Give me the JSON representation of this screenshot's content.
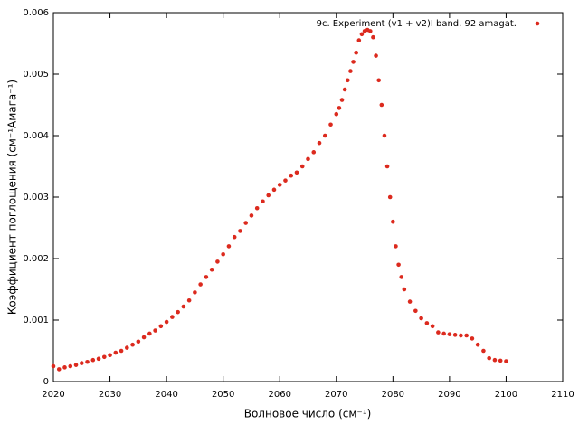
{
  "chart_data": {
    "type": "scatter",
    "xlabel": "Волновое число (см⁻¹)",
    "ylabel": "Коэффициент поглощения (см⁻¹Амага⁻¹)",
    "xlim": [
      2020,
      2110
    ],
    "xticks": [
      2020,
      2030,
      2040,
      2050,
      2060,
      2070,
      2080,
      2090,
      2100,
      2110
    ],
    "ylim": [
      0,
      0.006
    ],
    "yticks": [
      0,
      0.001,
      0.002,
      0.003,
      0.004,
      0.005,
      0.006
    ],
    "legend": "upper right",
    "series": [
      {
        "name": "9c. Experiment (v1 + v2)I band. 92 amagat.",
        "color": "#dc2a1e",
        "x": [
          2020,
          2021,
          2022,
          2023,
          2024,
          2025,
          2026,
          2027,
          2028,
          2029,
          2030,
          2031,
          2032,
          2033,
          2034,
          2035,
          2036,
          2037,
          2038,
          2039,
          2040,
          2041,
          2042,
          2043,
          2044,
          2045,
          2046,
          2047,
          2048,
          2049,
          2050,
          2051,
          2052,
          2053,
          2054,
          2055,
          2056,
          2057,
          2058,
          2059,
          2060,
          2061,
          2062,
          2063,
          2064,
          2065,
          2066,
          2067,
          2068,
          2069,
          2070,
          2070.5,
          2071,
          2071.5,
          2072,
          2072.5,
          2073,
          2073.5,
          2074,
          2074.5,
          2075,
          2075.5,
          2076,
          2076.5,
          2077,
          2077.5,
          2078,
          2078.5,
          2079,
          2079.5,
          2080,
          2080.5,
          2081,
          2081.5,
          2082,
          2083,
          2084,
          2085,
          2086,
          2087,
          2088,
          2089,
          2090,
          2091,
          2092,
          2093,
          2094,
          2095,
          2096,
          2097,
          2098,
          2099,
          2100
        ],
        "values": [
          0.00025,
          0.0002,
          0.00023,
          0.00025,
          0.00027,
          0.0003,
          0.00032,
          0.00035,
          0.00037,
          0.0004,
          0.00043,
          0.00047,
          0.0005,
          0.00055,
          0.0006,
          0.00065,
          0.00072,
          0.00078,
          0.00083,
          0.0009,
          0.00097,
          0.00105,
          0.00113,
          0.00122,
          0.00132,
          0.00145,
          0.00158,
          0.0017,
          0.00182,
          0.00195,
          0.00207,
          0.0022,
          0.00235,
          0.00245,
          0.00258,
          0.0027,
          0.00282,
          0.00293,
          0.00303,
          0.00312,
          0.0032,
          0.00327,
          0.00335,
          0.0034,
          0.0035,
          0.00362,
          0.00373,
          0.00388,
          0.004,
          0.00418,
          0.00435,
          0.00445,
          0.00458,
          0.00475,
          0.0049,
          0.00505,
          0.0052,
          0.00535,
          0.00555,
          0.00565,
          0.0057,
          0.00572,
          0.0057,
          0.0056,
          0.0053,
          0.0049,
          0.0045,
          0.004,
          0.0035,
          0.003,
          0.0026,
          0.0022,
          0.0019,
          0.0017,
          0.0015,
          0.0013,
          0.00115,
          0.00103,
          0.00095,
          0.0009,
          0.0008,
          0.00078,
          0.00077,
          0.00076,
          0.00075,
          0.00075,
          0.0007,
          0.0006,
          0.0005,
          0.00038,
          0.00035,
          0.00034,
          0.00033
        ]
      }
    ]
  }
}
